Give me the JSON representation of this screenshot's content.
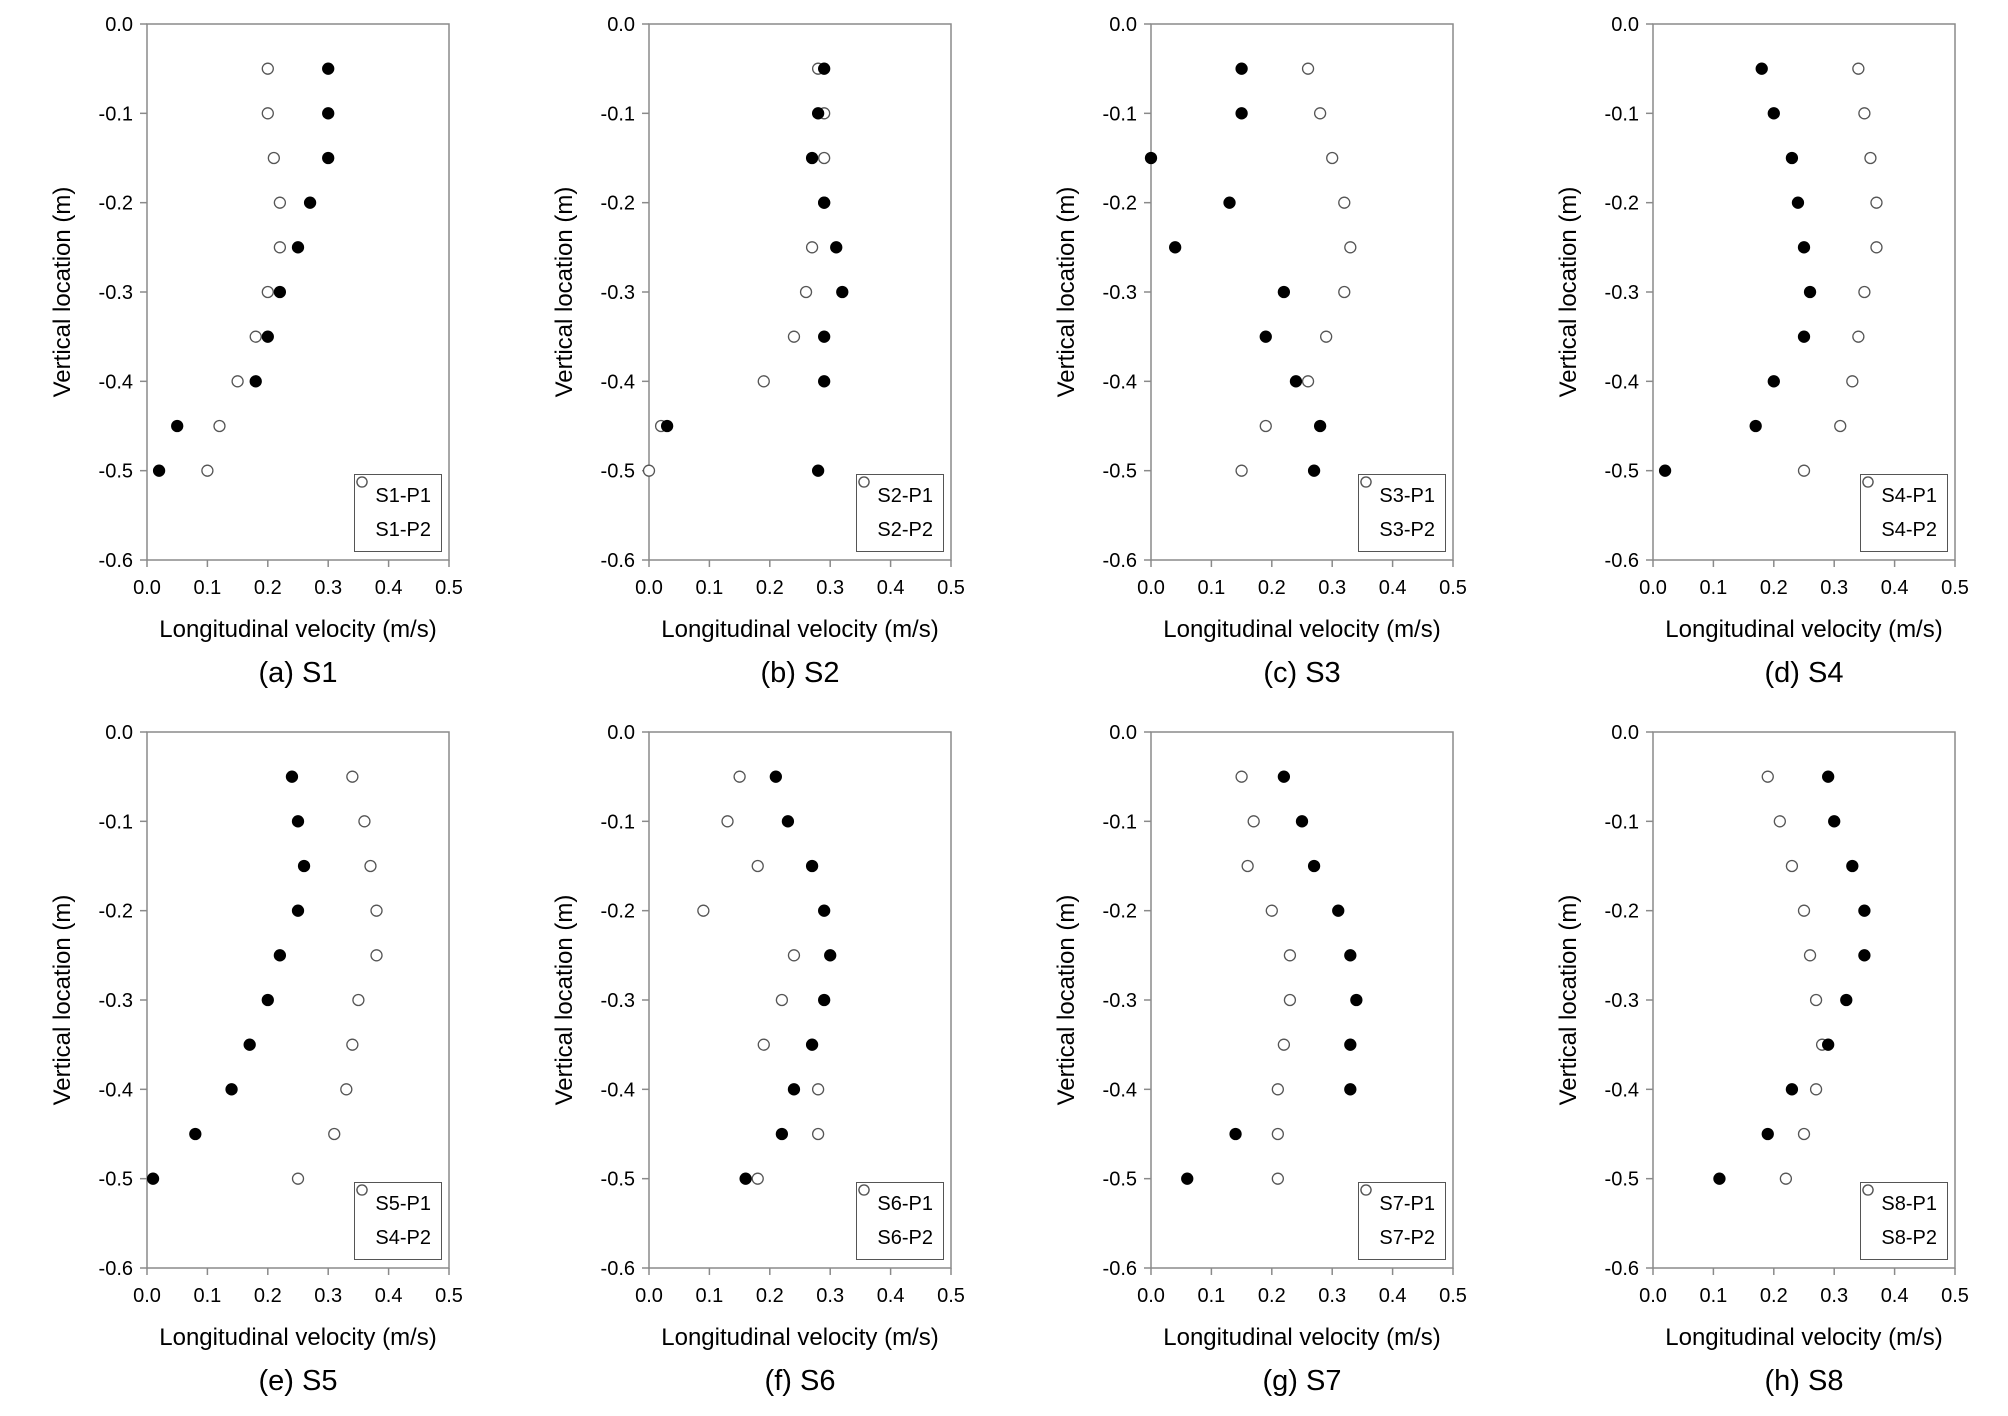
{
  "chart_data": [
    {
      "type": "scatter",
      "caption": "(a) S1",
      "xlabel": "Longitudinal velocity (m/s)",
      "ylabel": "Vertical location (m)",
      "xlim": [
        0,
        0.5
      ],
      "ylim": [
        -0.6,
        0
      ],
      "xticks": [
        "0.0",
        "0.1",
        "0.2",
        "0.3",
        "0.4",
        "0.5"
      ],
      "yticks": [
        "0.0",
        "-0.1",
        "-0.2",
        "-0.3",
        "-0.4",
        "-0.5",
        "-0.6"
      ],
      "legend": "bottom-right",
      "series": [
        {
          "name": "S1-P1",
          "marker": "filled",
          "x": [
            0.3,
            0.3,
            0.3,
            0.27,
            0.25,
            0.22,
            0.2,
            0.18,
            0.05,
            0.02
          ],
          "y": [
            -0.05,
            -0.1,
            -0.15,
            -0.2,
            -0.25,
            -0.3,
            -0.35,
            -0.4,
            -0.45,
            -0.5
          ]
        },
        {
          "name": "S1-P2",
          "marker": "open",
          "x": [
            0.2,
            0.2,
            0.21,
            0.22,
            0.22,
            0.2,
            0.18,
            0.15,
            0.12,
            0.1
          ],
          "y": [
            -0.05,
            -0.1,
            -0.15,
            -0.2,
            -0.25,
            -0.3,
            -0.35,
            -0.4,
            -0.45,
            -0.5
          ]
        }
      ]
    },
    {
      "type": "scatter",
      "caption": "(b) S2",
      "xlabel": "Longitudinal velocity (m/s)",
      "ylabel": "Vertical location (m)",
      "xlim": [
        0,
        0.5
      ],
      "ylim": [
        -0.6,
        0
      ],
      "xticks": [
        "0.0",
        "0.1",
        "0.2",
        "0.3",
        "0.4",
        "0.5"
      ],
      "yticks": [
        "0.0",
        "-0.1",
        "-0.2",
        "-0.3",
        "-0.4",
        "-0.5",
        "-0.6"
      ],
      "legend": "bottom-right",
      "series": [
        {
          "name": "S2-P1",
          "marker": "filled",
          "x": [
            0.29,
            0.28,
            0.27,
            0.29,
            0.31,
            0.32,
            0.29,
            0.29,
            0.03,
            0.28
          ],
          "y": [
            -0.05,
            -0.1,
            -0.15,
            -0.2,
            -0.25,
            -0.3,
            -0.35,
            -0.4,
            -0.45,
            -0.5
          ]
        },
        {
          "name": "S2-P2",
          "marker": "open",
          "x": [
            0.28,
            0.29,
            0.29,
            0.29,
            0.27,
            0.26,
            0.24,
            0.19,
            0.02,
            0.0
          ],
          "y": [
            -0.05,
            -0.1,
            -0.15,
            -0.2,
            -0.25,
            -0.3,
            -0.35,
            -0.4,
            -0.45,
            -0.5
          ]
        }
      ]
    },
    {
      "type": "scatter",
      "caption": "(c) S3",
      "xlabel": "Longitudinal velocity (m/s)",
      "ylabel": "Vertical location (m)",
      "xlim": [
        0,
        0.5
      ],
      "ylim": [
        -0.6,
        0
      ],
      "xticks": [
        "0.0",
        "0.1",
        "0.2",
        "0.3",
        "0.4",
        "0.5"
      ],
      "yticks": [
        "0.0",
        "-0.1",
        "-0.2",
        "-0.3",
        "-0.4",
        "-0.5",
        "-0.6"
      ],
      "legend": "bottom-right",
      "series": [
        {
          "name": "S3-P1",
          "marker": "filled",
          "x": [
            0.15,
            0.15,
            0.0,
            0.13,
            0.04,
            0.22,
            0.19,
            0.24,
            0.28,
            0.27
          ],
          "y": [
            -0.05,
            -0.1,
            -0.15,
            -0.2,
            -0.25,
            -0.3,
            -0.35,
            -0.4,
            -0.45,
            -0.5
          ]
        },
        {
          "name": "S3-P2",
          "marker": "open",
          "x": [
            0.26,
            0.28,
            0.3,
            0.32,
            0.33,
            0.32,
            0.29,
            0.26,
            0.19,
            0.15
          ],
          "y": [
            -0.05,
            -0.1,
            -0.15,
            -0.2,
            -0.25,
            -0.3,
            -0.35,
            -0.4,
            -0.45,
            -0.5
          ]
        }
      ]
    },
    {
      "type": "scatter",
      "caption": "(d) S4",
      "xlabel": "Longitudinal velocity (m/s)",
      "ylabel": "Vertical location (m)",
      "xlim": [
        0,
        0.5
      ],
      "ylim": [
        -0.6,
        0
      ],
      "xticks": [
        "0.0",
        "0.1",
        "0.2",
        "0.3",
        "0.4",
        "0.5"
      ],
      "yticks": [
        "0.0",
        "-0.1",
        "-0.2",
        "-0.3",
        "-0.4",
        "-0.5",
        "-0.6"
      ],
      "legend": "bottom-right",
      "series": [
        {
          "name": "S4-P1",
          "marker": "filled",
          "x": [
            0.18,
            0.2,
            0.23,
            0.24,
            0.25,
            0.26,
            0.25,
            0.2,
            0.17,
            0.02
          ],
          "y": [
            -0.05,
            -0.1,
            -0.15,
            -0.2,
            -0.25,
            -0.3,
            -0.35,
            -0.4,
            -0.45,
            -0.5
          ]
        },
        {
          "name": "S4-P2",
          "marker": "open",
          "x": [
            0.34,
            0.35,
            0.36,
            0.37,
            0.37,
            0.35,
            0.34,
            0.33,
            0.31,
            0.25
          ],
          "y": [
            -0.05,
            -0.1,
            -0.15,
            -0.2,
            -0.25,
            -0.3,
            -0.35,
            -0.4,
            -0.45,
            -0.5
          ]
        }
      ]
    },
    {
      "type": "scatter",
      "caption": "(e) S5",
      "xlabel": "Longitudinal velocity (m/s)",
      "ylabel": "Vertical location (m)",
      "xlim": [
        0,
        0.5
      ],
      "ylim": [
        -0.6,
        0
      ],
      "xticks": [
        "0.0",
        "0.1",
        "0.2",
        "0.3",
        "0.4",
        "0.5"
      ],
      "yticks": [
        "0.0",
        "-0.1",
        "-0.2",
        "-0.3",
        "-0.4",
        "-0.5",
        "-0.6"
      ],
      "legend": "bottom-right",
      "series": [
        {
          "name": "S5-P1",
          "marker": "filled",
          "x": [
            0.24,
            0.25,
            0.26,
            0.25,
            0.22,
            0.2,
            0.17,
            0.14,
            0.08,
            0.01
          ],
          "y": [
            -0.05,
            -0.1,
            -0.15,
            -0.2,
            -0.25,
            -0.3,
            -0.35,
            -0.4,
            -0.45,
            -0.5
          ]
        },
        {
          "name": "S4-P2",
          "marker": "open",
          "x": [
            0.34,
            0.36,
            0.37,
            0.38,
            0.38,
            0.35,
            0.34,
            0.33,
            0.31,
            0.25
          ],
          "y": [
            -0.05,
            -0.1,
            -0.15,
            -0.2,
            -0.25,
            -0.3,
            -0.35,
            -0.4,
            -0.45,
            -0.5
          ]
        }
      ]
    },
    {
      "type": "scatter",
      "caption": "(f) S6",
      "xlabel": "Longitudinal velocity (m/s)",
      "ylabel": "Vertical location (m)",
      "xlim": [
        0,
        0.5
      ],
      "ylim": [
        -0.6,
        0
      ],
      "xticks": [
        "0.0",
        "0.1",
        "0.2",
        "0.3",
        "0.4",
        "0.5"
      ],
      "yticks": [
        "0.0",
        "-0.1",
        "-0.2",
        "-0.3",
        "-0.4",
        "-0.5",
        "-0.6"
      ],
      "legend": "bottom-right",
      "series": [
        {
          "name": "S6-P1",
          "marker": "filled",
          "x": [
            0.21,
            0.23,
            0.27,
            0.29,
            0.3,
            0.29,
            0.27,
            0.24,
            0.22,
            0.16
          ],
          "y": [
            -0.05,
            -0.1,
            -0.15,
            -0.2,
            -0.25,
            -0.3,
            -0.35,
            -0.4,
            -0.45,
            -0.5
          ]
        },
        {
          "name": "S6-P2",
          "marker": "open",
          "x": [
            0.15,
            0.13,
            0.18,
            0.09,
            0.24,
            0.22,
            0.19,
            0.28,
            0.28,
            0.18
          ],
          "y": [
            -0.05,
            -0.1,
            -0.15,
            -0.2,
            -0.25,
            -0.3,
            -0.35,
            -0.4,
            -0.45,
            -0.5
          ]
        }
      ]
    },
    {
      "type": "scatter",
      "caption": "(g) S7",
      "xlabel": "Longitudinal velocity (m/s)",
      "ylabel": "Vertical location (m)",
      "xlim": [
        0,
        0.5
      ],
      "ylim": [
        -0.6,
        0
      ],
      "xticks": [
        "0.0",
        "0.1",
        "0.2",
        "0.3",
        "0.4",
        "0.5"
      ],
      "yticks": [
        "0.0",
        "-0.1",
        "-0.2",
        "-0.3",
        "-0.4",
        "-0.5",
        "-0.6"
      ],
      "legend": "bottom-right",
      "series": [
        {
          "name": "S7-P1",
          "marker": "filled",
          "x": [
            0.22,
            0.25,
            0.27,
            0.31,
            0.33,
            0.34,
            0.33,
            0.33,
            0.14,
            0.06
          ],
          "y": [
            -0.05,
            -0.1,
            -0.15,
            -0.2,
            -0.25,
            -0.3,
            -0.35,
            -0.4,
            -0.45,
            -0.5
          ]
        },
        {
          "name": "S7-P2",
          "marker": "open",
          "x": [
            0.15,
            0.17,
            0.16,
            0.2,
            0.23,
            0.23,
            0.22,
            0.21,
            0.21,
            0.21
          ],
          "y": [
            -0.05,
            -0.1,
            -0.15,
            -0.2,
            -0.25,
            -0.3,
            -0.35,
            -0.4,
            -0.45,
            -0.5
          ]
        }
      ]
    },
    {
      "type": "scatter",
      "caption": "(h) S8",
      "xlabel": "Longitudinal velocity (m/s)",
      "ylabel": "Vertical location (m)",
      "xlim": [
        0,
        0.5
      ],
      "ylim": [
        -0.6,
        0
      ],
      "xticks": [
        "0.0",
        "0.1",
        "0.2",
        "0.3",
        "0.4",
        "0.5"
      ],
      "yticks": [
        "0.0",
        "-0.1",
        "-0.2",
        "-0.3",
        "-0.4",
        "-0.5",
        "-0.6"
      ],
      "legend": "bottom-right",
      "series": [
        {
          "name": "S8-P1",
          "marker": "filled",
          "x": [
            0.29,
            0.3,
            0.33,
            0.35,
            0.35,
            0.32,
            0.29,
            0.23,
            0.19,
            0.11
          ],
          "y": [
            -0.05,
            -0.1,
            -0.15,
            -0.2,
            -0.25,
            -0.3,
            -0.35,
            -0.4,
            -0.45,
            -0.5
          ]
        },
        {
          "name": "S8-P2",
          "marker": "open",
          "x": [
            0.19,
            0.21,
            0.23,
            0.25,
            0.26,
            0.27,
            0.28,
            0.27,
            0.25,
            0.22
          ],
          "y": [
            -0.05,
            -0.1,
            -0.15,
            -0.2,
            -0.25,
            -0.3,
            -0.35,
            -0.4,
            -0.45,
            -0.5
          ]
        }
      ]
    }
  ]
}
